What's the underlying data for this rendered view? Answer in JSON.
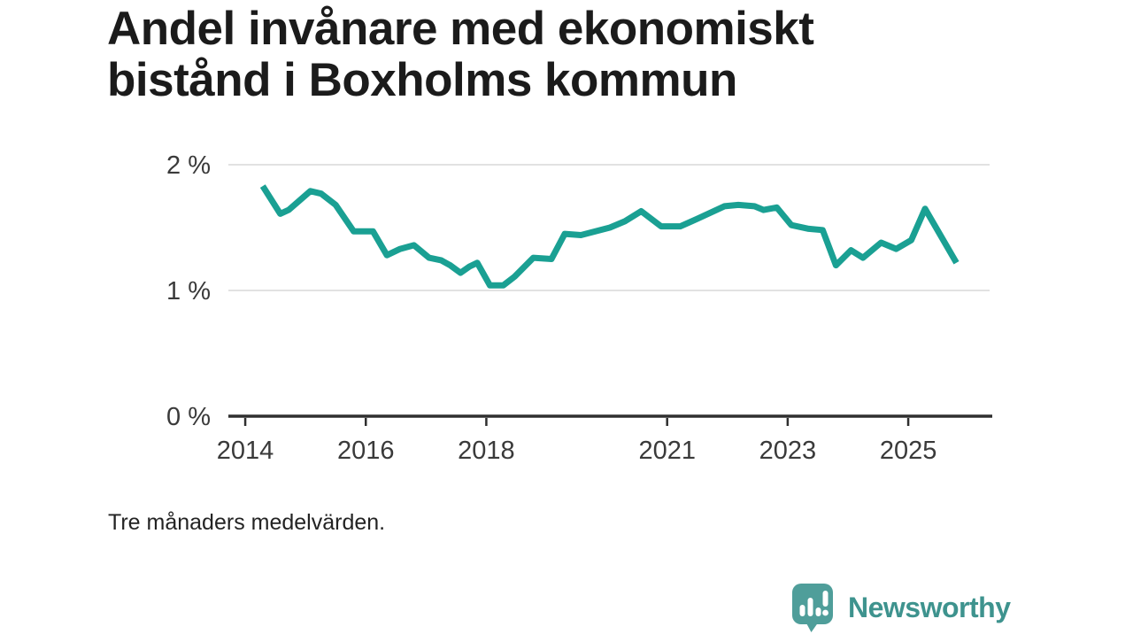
{
  "header": {
    "title_line1": "Andel invånare med ekonomiskt",
    "title_line2": "bistånd i Boxholms kommun"
  },
  "chart_data": {
    "type": "line",
    "title": "Andel invånare med ekonomiskt bistånd i Boxholms kommun",
    "xlabel": "",
    "ylabel": "",
    "unit": "%",
    "grid": "horizontal",
    "legend_position": "none",
    "xlim": [
      2013.72,
      2026.35
    ],
    "ylim": [
      0,
      2.1
    ],
    "x_ticks": [
      {
        "v": 2014,
        "label": "2014"
      },
      {
        "v": 2016,
        "label": "2016"
      },
      {
        "v": 2018,
        "label": "2018"
      },
      {
        "v": 2021,
        "label": "2021"
      },
      {
        "v": 2023,
        "label": "2023"
      },
      {
        "v": 2025,
        "label": "2025"
      }
    ],
    "y_ticks": [
      {
        "v": 0,
        "label": "0 %"
      },
      {
        "v": 1,
        "label": "1 %"
      },
      {
        "v": 2,
        "label": "2 %"
      }
    ],
    "line_color": "#1AA093",
    "series": [
      {
        "name": "Andel invånare med ekonomiskt bistånd",
        "points": [
          [
            2014.29,
            1.83
          ],
          [
            2014.58,
            1.61
          ],
          [
            2014.72,
            1.64
          ],
          [
            2015.08,
            1.79
          ],
          [
            2015.26,
            1.77
          ],
          [
            2015.5,
            1.68
          ],
          [
            2015.8,
            1.47
          ],
          [
            2016.12,
            1.47
          ],
          [
            2016.35,
            1.28
          ],
          [
            2016.57,
            1.33
          ],
          [
            2016.8,
            1.36
          ],
          [
            2017.05,
            1.26
          ],
          [
            2017.25,
            1.24
          ],
          [
            2017.4,
            1.2
          ],
          [
            2017.57,
            1.14
          ],
          [
            2017.72,
            1.19
          ],
          [
            2017.85,
            1.22
          ],
          [
            2018.06,
            1.04
          ],
          [
            2018.28,
            1.04
          ],
          [
            2018.47,
            1.11
          ],
          [
            2018.78,
            1.26
          ],
          [
            2019.08,
            1.25
          ],
          [
            2019.3,
            1.45
          ],
          [
            2019.57,
            1.44
          ],
          [
            2020.05,
            1.5
          ],
          [
            2020.3,
            1.55
          ],
          [
            2020.57,
            1.63
          ],
          [
            2020.9,
            1.51
          ],
          [
            2021.22,
            1.51
          ],
          [
            2021.5,
            1.57
          ],
          [
            2021.95,
            1.67
          ],
          [
            2022.18,
            1.68
          ],
          [
            2022.45,
            1.67
          ],
          [
            2022.6,
            1.64
          ],
          [
            2022.82,
            1.66
          ],
          [
            2023.06,
            1.52
          ],
          [
            2023.35,
            1.49
          ],
          [
            2023.58,
            1.48
          ],
          [
            2023.8,
            1.2
          ],
          [
            2024.05,
            1.32
          ],
          [
            2024.25,
            1.26
          ],
          [
            2024.55,
            1.38
          ],
          [
            2024.8,
            1.33
          ],
          [
            2025.05,
            1.4
          ],
          [
            2025.28,
            1.65
          ],
          [
            2025.8,
            1.22
          ]
        ]
      }
    ]
  },
  "footnote": "Tre månaders medelvärden.",
  "logo": {
    "text": "Newsworthy",
    "mark_icon": "bar-chart-speech-bubble-icon",
    "mark_color": "#4F9E9A",
    "text_color": "#3E938E"
  },
  "colors": {
    "background": "#ffffff",
    "gridline": "#d9d9d9",
    "axis": "#2f2f2f",
    "tick_label": "#3a3a3a",
    "title": "#1b1b1b"
  }
}
